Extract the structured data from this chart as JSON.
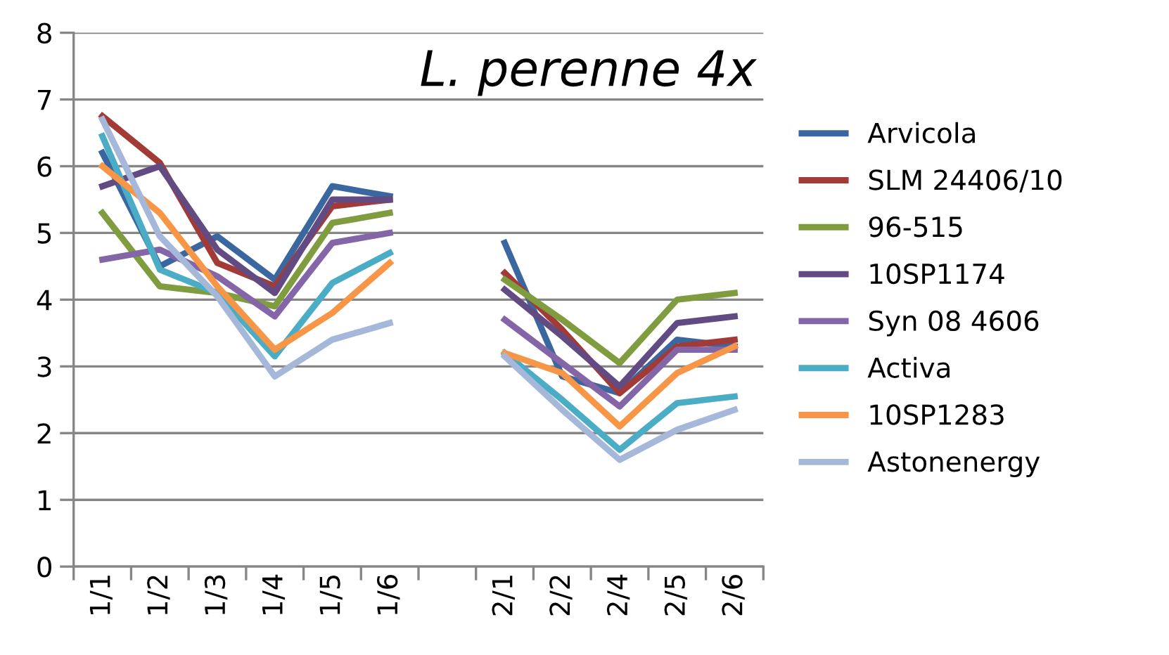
{
  "chart_data": {
    "type": "line",
    "title": "L. perenne 4x",
    "categories": [
      "1/1",
      "1/2",
      "1/3",
      "1/4",
      "1/5",
      "1/6",
      null,
      "2/1",
      "2/2",
      "2/4",
      "2/5",
      "2/6"
    ],
    "ylim": [
      0,
      8
    ],
    "yticks": [
      0,
      1,
      2,
      3,
      4,
      5,
      6,
      7,
      8
    ],
    "grid": "y",
    "legend": "right",
    "marker": "none",
    "line_style": "solid",
    "series": [
      {
        "name": "Arvicola",
        "color": "#3a67a0",
        "values": [
          6.2,
          4.5,
          4.95,
          4.3,
          5.7,
          5.55,
          null,
          4.85,
          2.85,
          2.6,
          3.4,
          3.3
        ]
      },
      {
        "name": "SLM 24406/10",
        "color": "#a23b38",
        "values": [
          6.75,
          6.05,
          4.55,
          4.2,
          5.4,
          5.5,
          null,
          4.4,
          3.55,
          2.6,
          3.3,
          3.4
        ]
      },
      {
        "name": "96-515",
        "color": "#7f9c3f",
        "values": [
          5.3,
          4.2,
          4.1,
          3.9,
          5.15,
          5.3,
          null,
          4.3,
          3.7,
          3.05,
          4.0,
          4.1
        ]
      },
      {
        "name": "10SP1174",
        "color": "#624a82",
        "values": [
          5.7,
          6.0,
          4.75,
          4.1,
          5.5,
          5.5,
          null,
          4.15,
          3.45,
          2.7,
          3.65,
          3.75
        ]
      },
      {
        "name": "Syn 08 4606",
        "color": "#8465a8",
        "values": [
          4.6,
          4.75,
          4.35,
          3.75,
          4.85,
          5.0,
          null,
          3.7,
          3.05,
          2.4,
          3.25,
          3.25
        ]
      },
      {
        "name": "Activa",
        "color": "#4bacc6",
        "values": [
          6.45,
          4.45,
          4.1,
          3.15,
          4.25,
          4.7,
          null,
          3.2,
          2.5,
          1.75,
          2.45,
          2.55
        ]
      },
      {
        "name": "10SP1283",
        "color": "#f79646",
        "values": [
          6.0,
          5.3,
          4.2,
          3.25,
          3.8,
          4.55,
          null,
          3.2,
          2.9,
          2.1,
          2.9,
          3.3
        ]
      },
      {
        "name": "Astonenergy",
        "color": "#a5b8d9",
        "values": [
          6.7,
          4.95,
          4.05,
          2.85,
          3.4,
          3.65,
          null,
          3.15,
          2.35,
          1.6,
          2.05,
          2.35
        ]
      }
    ]
  }
}
